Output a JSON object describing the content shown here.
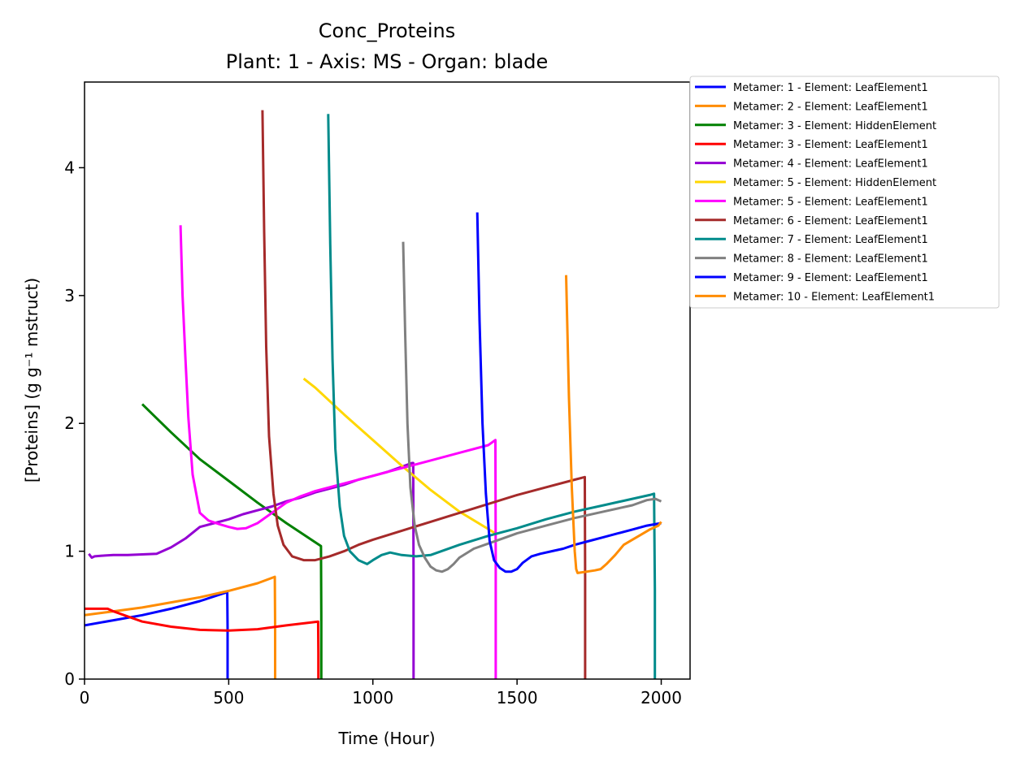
{
  "chart_data": {
    "type": "line",
    "title": "Conc_Proteins",
    "subtitle": "Plant: 1 - Axis: MS - Organ: blade",
    "xlabel": "Time (Hour)",
    "ylabel": "[Proteins] (g g⁻¹ mstruct)",
    "xlim": [
      0,
      2100
    ],
    "ylim": [
      0,
      4.67
    ],
    "xticks": [
      0,
      500,
      1000,
      1500,
      2000
    ],
    "yticks": [
      0,
      1,
      2,
      3,
      4
    ],
    "legend_position": "outside-right",
    "grid": false,
    "series": [
      {
        "name": "Metamer: 1 - Element: LeafElement1",
        "color": "#0000ff",
        "x": [
          0,
          100,
          200,
          300,
          400,
          495,
          496,
          496
        ],
        "y": [
          0.42,
          0.46,
          0.5,
          0.55,
          0.61,
          0.68,
          0.4,
          0
        ]
      },
      {
        "name": "Metamer: 2 - Element: LeafElement1",
        "color": "#ff8c00",
        "x": [
          0,
          100,
          200,
          300,
          400,
          500,
          600,
          660,
          661,
          661
        ],
        "y": [
          0.5,
          0.53,
          0.56,
          0.6,
          0.64,
          0.69,
          0.75,
          0.8,
          0.4,
          0
        ]
      },
      {
        "name": "Metamer: 3 - Element: HiddenElement",
        "color": "#008000",
        "x": [
          200,
          300,
          400,
          500,
          600,
          700,
          820,
          821,
          821
        ],
        "y": [
          2.15,
          1.93,
          1.72,
          1.55,
          1.38,
          1.22,
          1.04,
          0.5,
          0
        ]
      },
      {
        "name": "Metamer: 3 - Element: LeafElement1",
        "color": "#ff0000",
        "x": [
          0,
          50,
          80,
          100,
          150,
          200,
          300,
          400,
          500,
          600,
          700,
          810,
          811,
          811
        ],
        "y": [
          0.55,
          0.55,
          0.55,
          0.53,
          0.49,
          0.45,
          0.41,
          0.385,
          0.38,
          0.39,
          0.42,
          0.45,
          0.2,
          0
        ]
      },
      {
        "name": "Metamer: 4 - Element: LeafElement1",
        "color": "#9400d3",
        "x": [
          15,
          25,
          35,
          60,
          100,
          150,
          200,
          250,
          300,
          350,
          400,
          450,
          500,
          550,
          600,
          650,
          700,
          750,
          800,
          850,
          900,
          950,
          1000,
          1050,
          1100,
          1135,
          1140,
          1141,
          1141
        ],
        "y": [
          0.98,
          0.95,
          0.96,
          0.965,
          0.97,
          0.97,
          0.975,
          0.98,
          1.03,
          1.1,
          1.19,
          1.22,
          1.25,
          1.29,
          1.32,
          1.35,
          1.39,
          1.42,
          1.46,
          1.49,
          1.52,
          1.56,
          1.59,
          1.62,
          1.66,
          1.69,
          1.69,
          0.8,
          0
        ]
      },
      {
        "name": "Metamer: 5 - Element: HiddenElement",
        "color": "#ffd700",
        "x": [
          760,
          800,
          900,
          1000,
          1100,
          1200,
          1300,
          1425
        ],
        "y": [
          2.35,
          2.28,
          2.07,
          1.87,
          1.67,
          1.48,
          1.31,
          1.14
        ]
      },
      {
        "name": "Metamer: 5 - Element: LeafElement1",
        "color": "#ff00ff",
        "x": [
          333,
          340,
          350,
          360,
          375,
          400,
          430,
          470,
          500,
          530,
          560,
          600,
          650,
          700,
          750,
          800,
          900,
          1000,
          1100,
          1200,
          1300,
          1400,
          1425,
          1426,
          1426
        ],
        "y": [
          3.55,
          3.0,
          2.5,
          2.05,
          1.6,
          1.3,
          1.24,
          1.21,
          1.19,
          1.175,
          1.18,
          1.22,
          1.3,
          1.38,
          1.43,
          1.47,
          1.53,
          1.59,
          1.65,
          1.71,
          1.77,
          1.83,
          1.87,
          0.9,
          0
        ]
      },
      {
        "name": "Metamer: 6 - Element: LeafElement1",
        "color": "#a52a2a",
        "x": [
          617,
          623,
          630,
          640,
          655,
          670,
          690,
          720,
          760,
          800,
          850,
          900,
          950,
          1000,
          1100,
          1200,
          1300,
          1400,
          1500,
          1600,
          1700,
          1735,
          1736,
          1736
        ],
        "y": [
          4.45,
          3.5,
          2.6,
          1.9,
          1.45,
          1.2,
          1.05,
          0.96,
          0.93,
          0.93,
          0.96,
          1.0,
          1.05,
          1.09,
          1.16,
          1.23,
          1.3,
          1.37,
          1.44,
          1.5,
          1.56,
          1.58,
          0.8,
          0
        ]
      },
      {
        "name": "Metamer: 7 - Element: LeafElement1",
        "color": "#008b8b",
        "x": [
          845,
          852,
          860,
          870,
          885,
          900,
          920,
          950,
          980,
          1000,
          1030,
          1060,
          1100,
          1150,
          1200,
          1300,
          1400,
          1500,
          1600,
          1700,
          1800,
          1900,
          1960,
          1975,
          1978,
          1978
        ],
        "y": [
          4.42,
          3.4,
          2.5,
          1.8,
          1.35,
          1.12,
          1.0,
          0.93,
          0.9,
          0.93,
          0.97,
          0.99,
          0.97,
          0.96,
          0.97,
          1.05,
          1.12,
          1.18,
          1.25,
          1.31,
          1.36,
          1.41,
          1.44,
          1.45,
          0.7,
          0
        ]
      },
      {
        "name": "Metamer: 8 - Element: LeafElement1",
        "color": "#808080",
        "x": [
          1105,
          1112,
          1120,
          1130,
          1145,
          1160,
          1180,
          1200,
          1220,
          1240,
          1260,
          1280,
          1300,
          1350,
          1400,
          1450,
          1500,
          1600,
          1700,
          1800,
          1900,
          1950,
          1980,
          2000
        ],
        "y": [
          3.42,
          2.7,
          2.0,
          1.5,
          1.2,
          1.05,
          0.95,
          0.88,
          0.85,
          0.84,
          0.86,
          0.9,
          0.95,
          1.02,
          1.06,
          1.1,
          1.14,
          1.2,
          1.26,
          1.31,
          1.36,
          1.4,
          1.41,
          1.39
        ]
      },
      {
        "name": "Metamer: 9 - Element: LeafElement1",
        "color": "#0000ff",
        "x": [
          1362,
          1370,
          1380,
          1392,
          1405,
          1420,
          1440,
          1460,
          1480,
          1500,
          1520,
          1550,
          1580,
          1620,
          1660,
          1700,
          1750,
          1800,
          1850,
          1900,
          1950,
          2000
        ],
        "y": [
          3.65,
          2.8,
          2.0,
          1.45,
          1.08,
          0.93,
          0.87,
          0.84,
          0.84,
          0.86,
          0.91,
          0.96,
          0.98,
          1.0,
          1.02,
          1.05,
          1.08,
          1.11,
          1.14,
          1.17,
          1.2,
          1.22
        ]
      },
      {
        "name": "Metamer: 10 - Element: LeafElement1",
        "color": "#ff8c00",
        "x": [
          1670,
          1680,
          1690,
          1700,
          1705,
          1710,
          1740,
          1770,
          1790,
          1810,
          1840,
          1870,
          1900,
          1930,
          1960,
          1990,
          2000
        ],
        "y": [
          3.16,
          2.2,
          1.5,
          1.0,
          0.86,
          0.83,
          0.84,
          0.85,
          0.86,
          0.9,
          0.97,
          1.05,
          1.09,
          1.13,
          1.17,
          1.2,
          1.23
        ]
      }
    ]
  }
}
